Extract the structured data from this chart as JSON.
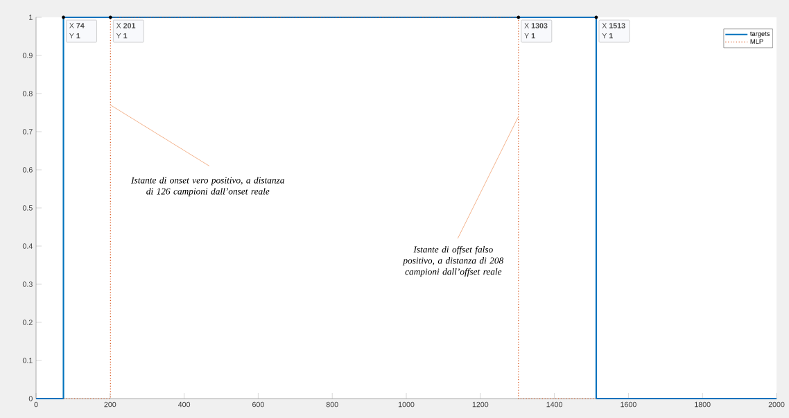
{
  "chart_data": {
    "type": "step",
    "xlim": [
      0,
      2000
    ],
    "ylim": [
      0,
      1
    ],
    "xticks": [
      0,
      200,
      400,
      600,
      800,
      1000,
      1200,
      1400,
      1600,
      1800,
      2000
    ],
    "yticks": [
      0,
      0.1,
      0.2,
      0.3,
      0.4,
      0.5,
      0.6,
      0.7,
      0.8,
      0.9,
      1
    ],
    "series": [
      {
        "name": "targets",
        "color": "#0072bd",
        "line_style": "solid",
        "x": [
          0,
          74,
          1513,
          2000
        ],
        "values": [
          0,
          1,
          0,
          0
        ]
      },
      {
        "name": "MLP",
        "color": "#d95319",
        "line_style": "dotted",
        "x": [
          74,
          201,
          1303,
          1513
        ],
        "values": [
          0,
          1,
          0,
          0
        ]
      },
      {
        "type": "scatter",
        "color": "#000000",
        "marker": "circle",
        "x": [
          74,
          201,
          1303,
          1513
        ],
        "values": [
          1,
          1,
          1,
          1
        ]
      }
    ],
    "legend": "top right",
    "annotations": [
      {
        "text": "Istante di onset vero positivo, a distanza di 126 campioni dall’onset reale",
        "x": 201,
        "y": 0.77
      },
      {
        "text": "Istante di offset falso positivo, a distanza di 208 campioni dall’offset reale",
        "x": 1303,
        "y": 0.74
      },
      {
        "text": "X **74**",
        "x": 74,
        "y": 1
      },
      {
        "text": "Y **1**",
        "x": 74,
        "y": 1
      },
      {
        "text": "X **201**",
        "x": 201,
        "y": 1
      },
      {
        "text": "Y **1**",
        "x": 201,
        "y": 1
      },
      {
        "text": "X **1303**",
        "x": 1303,
        "y": 1
      },
      {
        "text": "Y **1**",
        "x": 1303,
        "y": 1
      },
      {
        "text": "X **1513**",
        "x": 1513,
        "y": 1
      },
      {
        "text": "Y **1**",
        "x": 1513,
        "y": 1
      }
    ]
  }
}
